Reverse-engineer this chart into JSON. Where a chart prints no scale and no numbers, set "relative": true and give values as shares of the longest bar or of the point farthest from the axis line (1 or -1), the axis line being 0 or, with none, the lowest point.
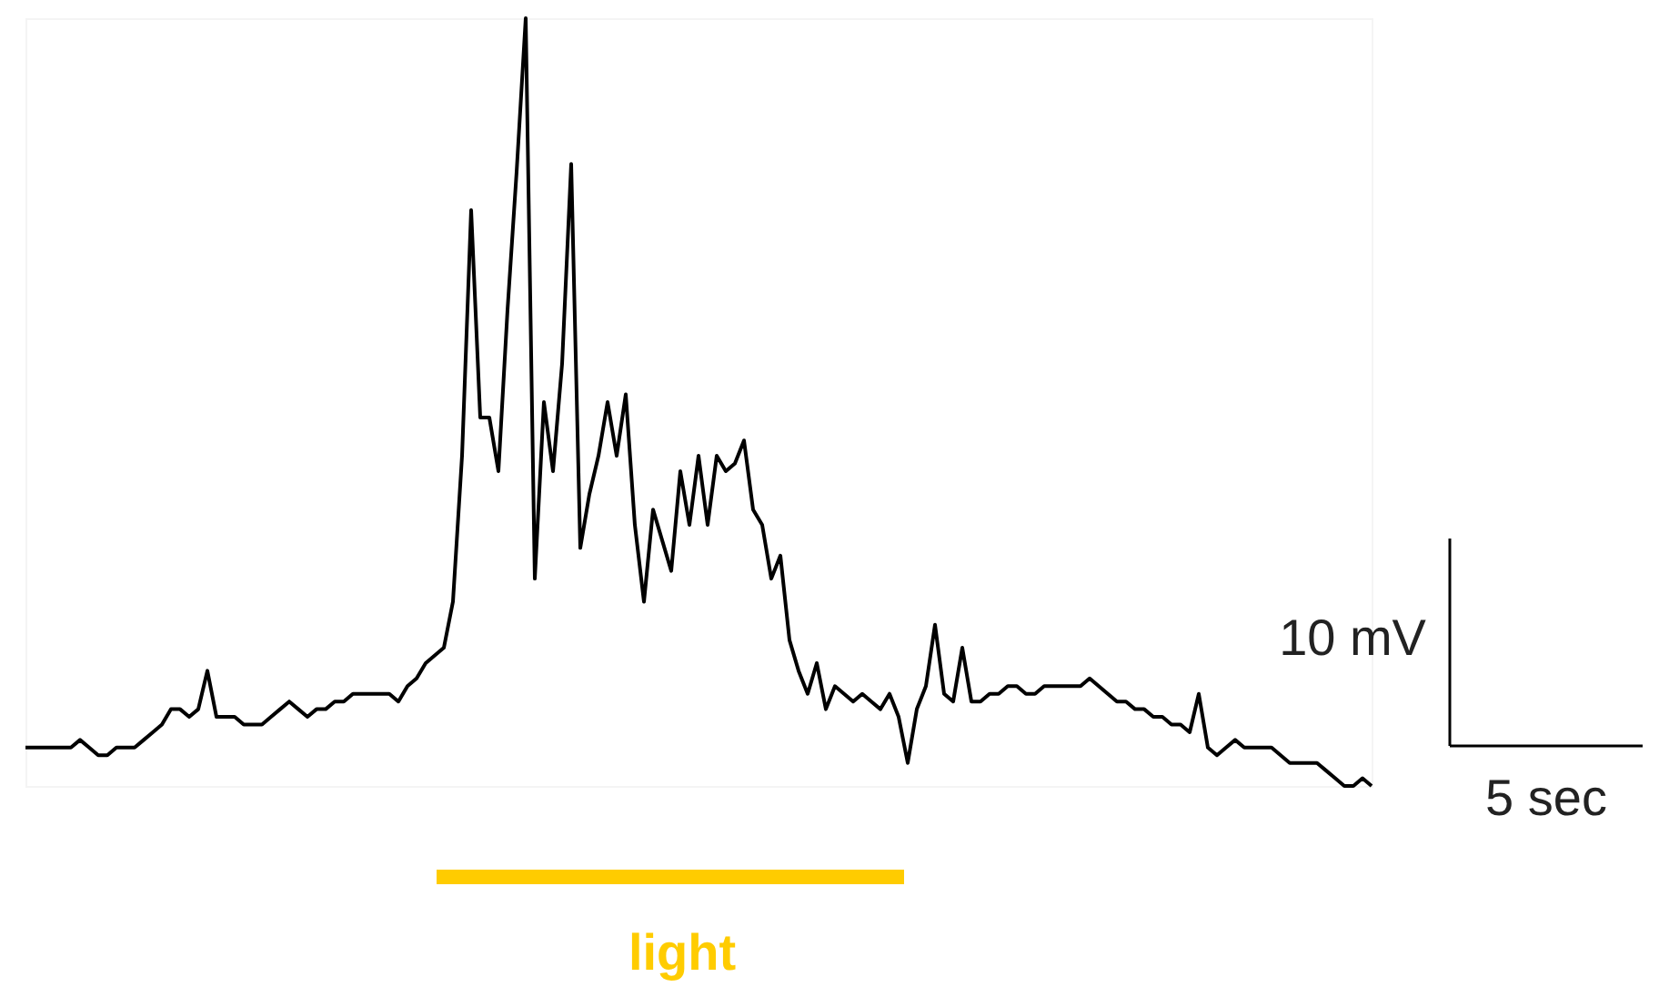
{
  "chart_data": {
    "type": "line",
    "relative": true,
    "tick_labels": false,
    "line_style": "solid",
    "categories": [
      null,
      null,
      null,
      null,
      null,
      null,
      null,
      null,
      null,
      null,
      null,
      null,
      null,
      null,
      null,
      null,
      null,
      null,
      null,
      null,
      null,
      null,
      null,
      null,
      null,
      null,
      null,
      null,
      null,
      null,
      null,
      null,
      null,
      null,
      null,
      null,
      null,
      null,
      null,
      null,
      null,
      null,
      null,
      null,
      null,
      null,
      null,
      null,
      null,
      null,
      null,
      null,
      null,
      null,
      null,
      null,
      null,
      null,
      null,
      null,
      null,
      null,
      null,
      null,
      null,
      null,
      null,
      null,
      null,
      null,
      null,
      null,
      null,
      null,
      null,
      null,
      null,
      null,
      null,
      null,
      null,
      null,
      null,
      null,
      null,
      null,
      null,
      null,
      null,
      null,
      null,
      null,
      null,
      null,
      null,
      null,
      null,
      null,
      null,
      null,
      null,
      null,
      null,
      null,
      null,
      null,
      null,
      null,
      null,
      null,
      null,
      null,
      null,
      null,
      null,
      null,
      null,
      null,
      null,
      null,
      null,
      null,
      null,
      null,
      null,
      null,
      null,
      null,
      null,
      null,
      null,
      null,
      null,
      null,
      null,
      null,
      null,
      null,
      null,
      null,
      null,
      null,
      null,
      null,
      null,
      null,
      null,
      null,
      null
    ],
    "series": [
      {
        "color": "#000000",
        "values": [
          0.05,
          0.05,
          0.05,
          0.05,
          0.05,
          0.05,
          0.06,
          0.05,
          0.04,
          0.04,
          0.05,
          0.05,
          0.05,
          0.06,
          0.07,
          0.08,
          0.1,
          0.1,
          0.09,
          0.1,
          0.15,
          0.09,
          0.09,
          0.09,
          0.08,
          0.08,
          0.08,
          0.09,
          0.1,
          0.11,
          0.1,
          0.09,
          0.1,
          0.1,
          0.11,
          0.11,
          0.12,
          0.12,
          0.12,
          0.12,
          0.12,
          0.11,
          0.13,
          0.14,
          0.16,
          0.17,
          0.18,
          0.24,
          0.43,
          0.75,
          0.48,
          0.48,
          0.41,
          0.62,
          0.8,
          1.0,
          0.27,
          0.5,
          0.41,
          0.55,
          0.81,
          0.31,
          0.38,
          0.43,
          0.5,
          0.43,
          0.51,
          0.34,
          0.24,
          0.36,
          0.32,
          0.28,
          0.41,
          0.34,
          0.43,
          0.34,
          0.43,
          0.41,
          0.42,
          0.45,
          0.36,
          0.34,
          0.27,
          0.3,
          0.19,
          0.15,
          0.12,
          0.16,
          0.1,
          0.13,
          0.12,
          0.11,
          0.12,
          0.11,
          0.1,
          0.12,
          0.09,
          0.03,
          0.1,
          0.13,
          0.21,
          0.12,
          0.11,
          0.18,
          0.11,
          0.11,
          0.12,
          0.12,
          0.13,
          0.13,
          0.12,
          0.12,
          0.13,
          0.13,
          0.13,
          0.13,
          0.13,
          0.14,
          0.13,
          0.12,
          0.11,
          0.11,
          0.1,
          0.1,
          0.09,
          0.09,
          0.08,
          0.08,
          0.07,
          0.12,
          0.05,
          0.04,
          0.05,
          0.06,
          0.05,
          0.05,
          0.05,
          0.05,
          0.04,
          0.03,
          0.03,
          0.03,
          0.03,
          0.02,
          0.01,
          0.0,
          0.0,
          0.01,
          0.0
        ]
      }
    ],
    "annotations": [
      "10 mV",
      "5 sec",
      "light"
    ]
  }
}
